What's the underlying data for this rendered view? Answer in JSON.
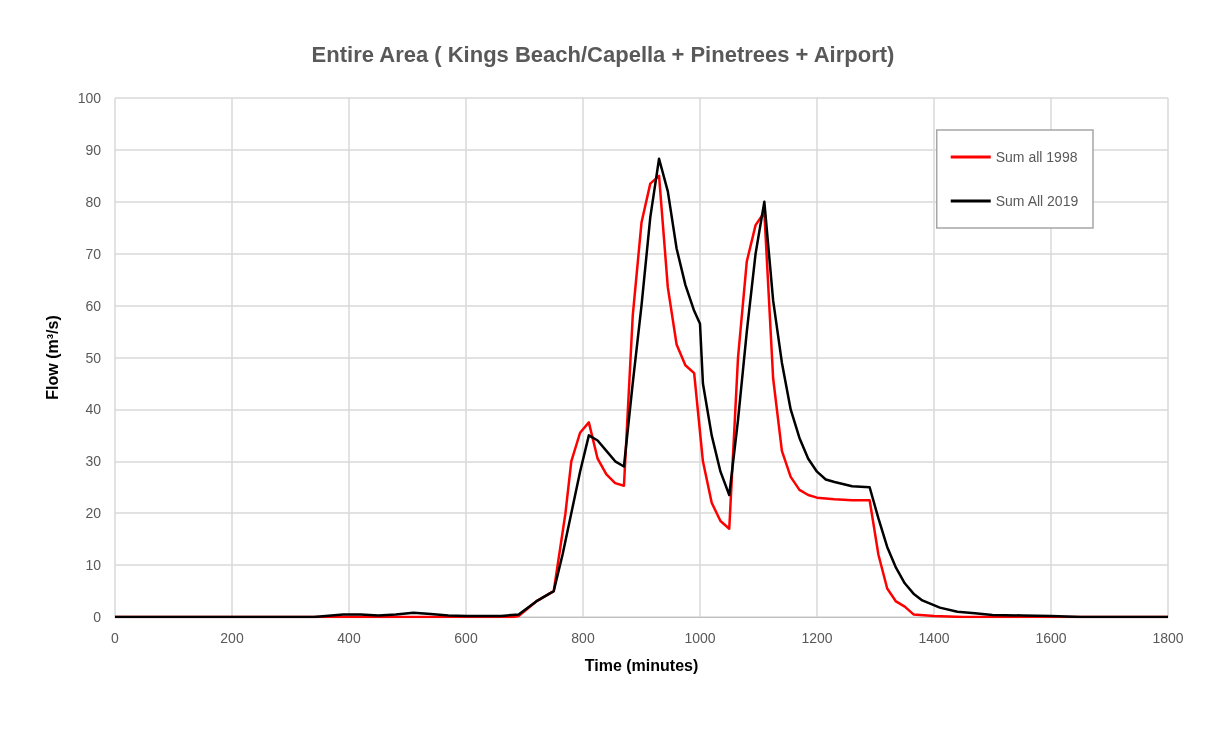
{
  "chart_data": {
    "type": "line",
    "title": "Entire Area ( Kings Beach/Capella + Pinetrees + Airport)",
    "xlabel": "Time (minutes)",
    "ylabel": "Flow (m³/s)",
    "xlim": [
      0,
      1800
    ],
    "xticks": [
      0,
      200,
      400,
      600,
      800,
      1000,
      1200,
      1400,
      1600,
      1800
    ],
    "ylim": [
      0,
      100
    ],
    "yticks": [
      0,
      10,
      20,
      30,
      40,
      50,
      60,
      70,
      80,
      90,
      100
    ],
    "grid": true,
    "legend": "top right",
    "marker": "none",
    "line_style": "solid",
    "series": [
      {
        "name": "Sum all 1998",
        "color": "#ff0000",
        "x": [
          0,
          340,
          680,
          690,
          720,
          750,
          770,
          780,
          795,
          810,
          825,
          840,
          855,
          870,
          885,
          900,
          915,
          930,
          945,
          960,
          975,
          990,
          1005,
          1020,
          1035,
          1050,
          1065,
          1080,
          1095,
          1110,
          1125,
          1140,
          1155,
          1170,
          1185,
          1200,
          1230,
          1260,
          1290,
          1305,
          1320,
          1335,
          1350,
          1365,
          1400,
          1450,
          1800
        ],
        "values": [
          0,
          0,
          0,
          0.2,
          3,
          5,
          20,
          30,
          35.5,
          37.5,
          30.5,
          27.5,
          25.8,
          25.3,
          58,
          76,
          83.5,
          85,
          63.5,
          52.5,
          48.5,
          47,
          30,
          22,
          18.5,
          17,
          50,
          68.5,
          75.5,
          78,
          46,
          32,
          27,
          24.5,
          23.5,
          23,
          22.7,
          22.5,
          22.5,
          12,
          5.5,
          3,
          2,
          0.5,
          0.2,
          0,
          0
        ]
      },
      {
        "name": "Sum All 2019",
        "color": "#000000",
        "x": [
          0,
          340,
          360,
          390,
          420,
          450,
          480,
          510,
          540,
          570,
          600,
          660,
          690,
          720,
          750,
          765,
          780,
          795,
          810,
          825,
          840,
          855,
          870,
          885,
          900,
          915,
          930,
          945,
          960,
          975,
          990,
          1000,
          1005,
          1020,
          1035,
          1050,
          1065,
          1080,
          1095,
          1110,
          1125,
          1140,
          1155,
          1170,
          1185,
          1200,
          1215,
          1230,
          1260,
          1290,
          1305,
          1320,
          1335,
          1350,
          1365,
          1380,
          1410,
          1440,
          1470,
          1500,
          1550,
          1600,
          1650,
          1800
        ],
        "values": [
          0,
          0,
          0.2,
          0.5,
          0.5,
          0.3,
          0.5,
          0.8,
          0.6,
          0.3,
          0.2,
          0.2,
          0.5,
          3,
          5,
          12,
          20,
          28,
          35,
          34,
          32,
          30,
          29,
          45,
          60,
          77,
          88.3,
          82,
          71,
          64,
          59,
          56.5,
          45,
          35,
          28,
          23.5,
          38,
          55,
          70,
          80,
          61,
          49,
          40,
          34.5,
          30.5,
          28,
          26.5,
          26,
          25.2,
          25,
          19,
          13.5,
          9.5,
          6.5,
          4.5,
          3.2,
          1.8,
          1,
          0.7,
          0.4,
          0.3,
          0.2,
          0,
          0
        ]
      }
    ]
  }
}
